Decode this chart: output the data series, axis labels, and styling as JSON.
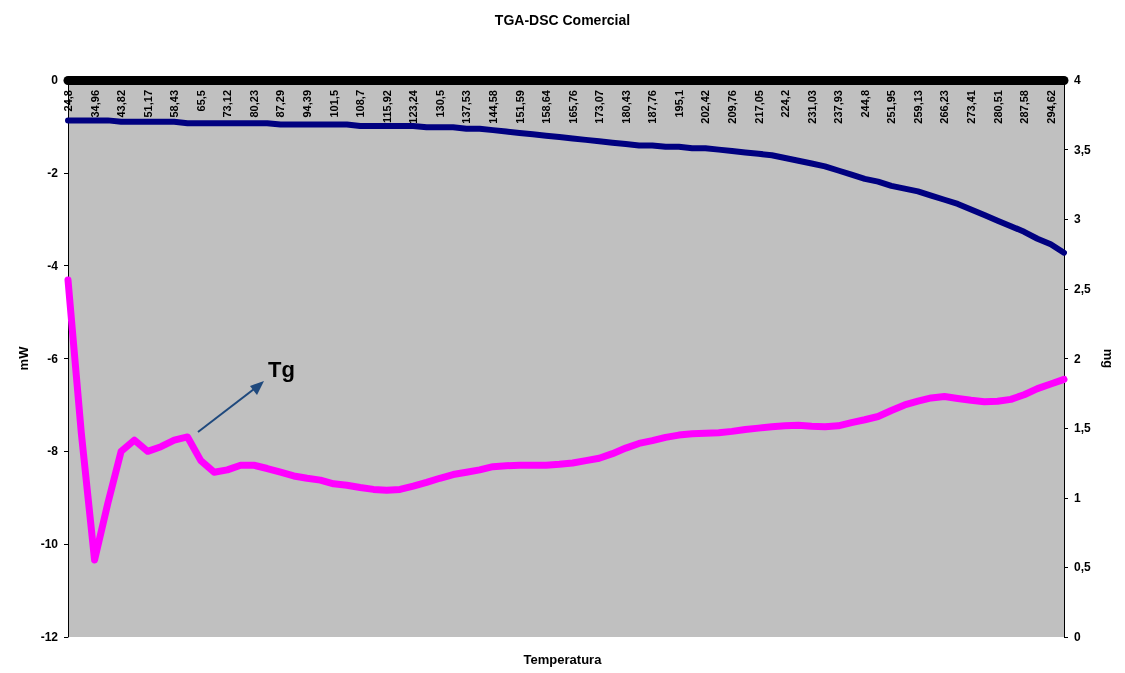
{
  "chart_data": {
    "type": "line",
    "title": "TGA-DSC Comercial",
    "xlabel": "Temperatura",
    "ylabel": "mW",
    "y2label": "mg",
    "categories": [
      "24,8",
      null,
      "34,96",
      null,
      "43,82",
      null,
      "51,17",
      null,
      "58,43",
      null,
      "65,5",
      null,
      "73,12",
      null,
      "80,23",
      null,
      "87,29",
      null,
      "94,39",
      null,
      "101,5",
      null,
      "108,7",
      null,
      "115,92",
      null,
      "123,24",
      null,
      "130,5",
      null,
      "137,53",
      null,
      "144,58",
      null,
      "151,59",
      null,
      "158,64",
      null,
      "165,76",
      null,
      "173,07",
      null,
      "180,43",
      null,
      "187,76",
      null,
      "195,1",
      null,
      "202,42",
      null,
      "209,76",
      null,
      "217,05",
      null,
      "224,2",
      null,
      "231,03",
      null,
      "237,93",
      null,
      "244,8",
      null,
      "251,95",
      null,
      "259,13",
      null,
      "266,23",
      null,
      "273,41",
      null,
      "280,51",
      null,
      "287,58",
      null,
      "294,62",
      null
    ],
    "series": [
      {
        "color": "#ff00ff",
        "values": [
          -4.31,
          -7.6,
          -10.34,
          -9.12,
          -8.0,
          -7.76,
          -8.0,
          -7.9,
          -7.76,
          -7.69,
          -8.2,
          -8.45,
          -8.4,
          -8.3,
          -8.3,
          -8.37,
          -8.45,
          -8.53,
          -8.58,
          -8.62,
          -8.7,
          -8.73,
          -8.78,
          -8.82,
          -8.84,
          -8.82,
          -8.75,
          -8.67,
          -8.58,
          -8.5,
          -8.45,
          -8.4,
          -8.33,
          -8.31,
          -8.3,
          -8.3,
          -8.3,
          -8.28,
          -8.25,
          -8.2,
          -8.15,
          -8.05,
          -7.93,
          -7.83,
          -7.77,
          -7.7,
          -7.65,
          -7.62,
          -7.61,
          -7.6,
          -7.57,
          -7.53,
          -7.5,
          -7.47,
          -7.45,
          -7.44,
          -7.46,
          -7.47,
          -7.45,
          -7.38,
          -7.32,
          -7.25,
          -7.12,
          -7.0,
          -6.92,
          -6.85,
          -6.82,
          -6.86,
          -6.9,
          -6.93,
          -6.92,
          -6.88,
          -6.78,
          -6.65,
          -6.55,
          -6.45
        ]
      },
      {
        "color": "#000080",
        "axis": "y2",
        "values": [
          3.71,
          3.71,
          3.71,
          3.71,
          3.7,
          3.7,
          3.7,
          3.7,
          3.7,
          3.69,
          3.69,
          3.69,
          3.69,
          3.69,
          3.69,
          3.69,
          3.68,
          3.68,
          3.68,
          3.68,
          3.68,
          3.68,
          3.67,
          3.67,
          3.67,
          3.67,
          3.67,
          3.66,
          3.66,
          3.66,
          3.65,
          3.65,
          3.64,
          3.63,
          3.62,
          3.61,
          3.6,
          3.59,
          3.58,
          3.57,
          3.56,
          3.55,
          3.54,
          3.53,
          3.53,
          3.52,
          3.52,
          3.51,
          3.51,
          3.5,
          3.49,
          3.48,
          3.47,
          3.46,
          3.44,
          3.42,
          3.4,
          3.38,
          3.35,
          3.32,
          3.29,
          3.27,
          3.24,
          3.22,
          3.2,
          3.17,
          3.14,
          3.11,
          3.07,
          3.03,
          2.99,
          2.95,
          2.91,
          2.86,
          2.82,
          2.76
        ]
      }
    ],
    "ylim": [
      -12,
      0
    ],
    "yticks": [
      -12,
      -10,
      -8,
      -6,
      -4,
      -2,
      0
    ],
    "y2lim": [
      0,
      4
    ],
    "y2ticks": [
      0,
      {
        "value": 0.5,
        "label": "0,5"
      },
      1,
      {
        "value": 1.5,
        "label": "1,5"
      },
      2,
      {
        "value": 2.5,
        "label": "2,5"
      },
      3,
      {
        "value": 3.5,
        "label": "3,5"
      },
      4
    ],
    "annotations": [
      "Tg"
    ]
  }
}
